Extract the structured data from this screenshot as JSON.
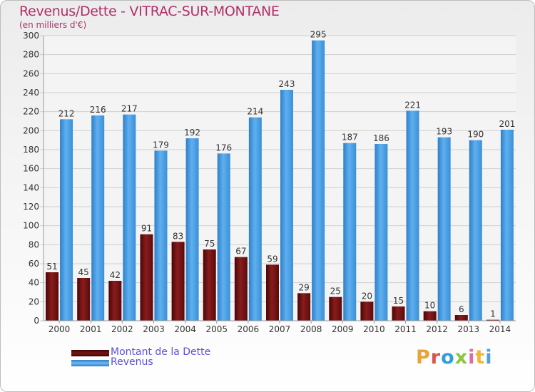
{
  "header": {
    "title": "Revenus/Dette - VITRAC-SUR-MONTANE",
    "subtitle": "(en milliers d'€)"
  },
  "legend": {
    "items": [
      {
        "label": "Montant de la Dette",
        "color": "#6b0f0f"
      },
      {
        "label": "Revenus",
        "color": "#3b8fd6"
      }
    ]
  },
  "logo": {
    "text": "Proxiti"
  },
  "colors": {
    "title": "#b0306a",
    "dette": "#6b0f0f",
    "revenus": "#3b8fd6",
    "legend_text": "#5a4fe0"
  },
  "chart_data": {
    "type": "bar",
    "title": "Revenus/Dette - VITRAC-SUR-MONTANE",
    "subtitle": "(en milliers d'€)",
    "xlabel": "",
    "ylabel": "",
    "ylim": [
      0,
      300
    ],
    "yticks": [
      0,
      20,
      40,
      60,
      80,
      100,
      120,
      140,
      160,
      180,
      200,
      220,
      240,
      260,
      280,
      300
    ],
    "grid": true,
    "legend_position": "bottom-left",
    "categories": [
      "2000",
      "2001",
      "2002",
      "2003",
      "2004",
      "2005",
      "2006",
      "2007",
      "2008",
      "2009",
      "2010",
      "2011",
      "2012",
      "2013",
      "2014"
    ],
    "series": [
      {
        "name": "Montant de la Dette",
        "values": [
          51,
          45,
          42,
          91,
          83,
          75,
          67,
          59,
          29,
          25,
          20,
          15,
          10,
          6,
          1
        ]
      },
      {
        "name": "Revenus",
        "values": [
          212,
          216,
          217,
          179,
          192,
          176,
          214,
          243,
          295,
          187,
          186,
          221,
          193,
          190,
          201
        ]
      }
    ]
  }
}
